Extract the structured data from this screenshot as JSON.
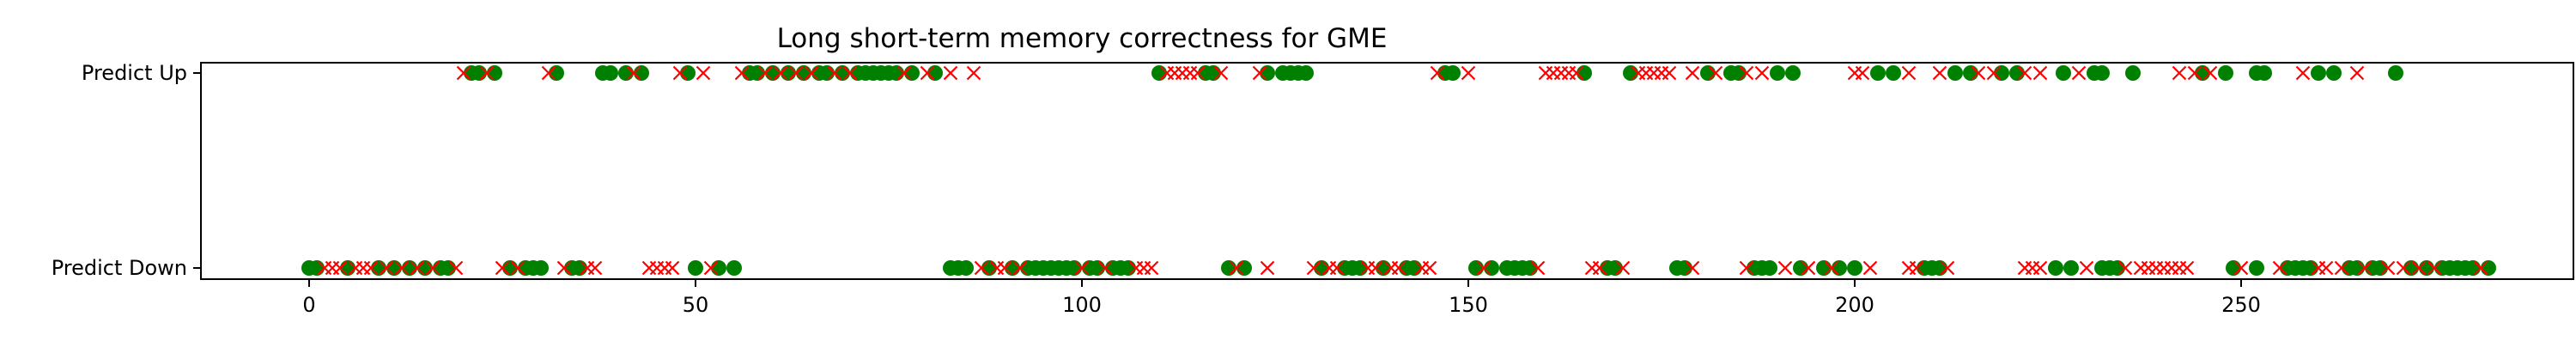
{
  "chart_data": {
    "type": "scatter",
    "title": "Long short-term memory correctness for GME",
    "xlabel": "",
    "ylabel": "",
    "xlim": [
      -14,
      293
    ],
    "x_ticks": [
      0,
      50,
      100,
      150,
      200,
      250
    ],
    "x_tick_labels": [
      "0",
      "50",
      "100",
      "150",
      "200",
      "250"
    ],
    "y_categories": [
      "Predict Down",
      "Predict Up"
    ],
    "legend": false,
    "grid": false,
    "marker_colors": {
      "correct": "#008000",
      "incorrect": "#ff0000"
    },
    "series": [
      {
        "marker": "circle",
        "color": "#008000",
        "points": [
          {
            "y": "Predict Up",
            "x": [
              21,
              22,
              24,
              32,
              38,
              39,
              41,
              43,
              49,
              57,
              58,
              60,
              62,
              64,
              66,
              67,
              69,
              71,
              72,
              73,
              74,
              75,
              76,
              78,
              81,
              110,
              116,
              117,
              124,
              126,
              127,
              128,
              129,
              147,
              148,
              165,
              171,
              181,
              184,
              185,
              190,
              192,
              203,
              205,
              213,
              215,
              219,
              221,
              227,
              231,
              232,
              236,
              245,
              248,
              252,
              253,
              260,
              262,
              270
            ]
          },
          {
            "y": "Predict Down",
            "x": [
              0,
              1,
              5,
              9,
              11,
              13,
              15,
              17,
              18,
              26,
              28,
              29,
              30,
              34,
              35,
              50,
              53,
              55,
              83,
              84,
              85,
              88,
              91,
              93,
              94,
              95,
              96,
              97,
              98,
              99,
              101,
              102,
              104,
              105,
              106,
              119,
              121,
              131,
              134,
              135,
              136,
              139,
              142,
              143,
              151,
              153,
              155,
              156,
              157,
              158,
              168,
              169,
              177,
              178,
              187,
              188,
              189,
              193,
              196,
              198,
              200,
              209,
              210,
              211,
              226,
              228,
              232,
              233,
              234,
              249,
              252,
              256,
              257,
              258,
              259,
              264,
              265,
              267,
              268,
              272,
              274,
              276,
              277,
              278,
              279,
              280,
              282
            ]
          }
        ]
      },
      {
        "marker": "x",
        "color": "#ff0000",
        "points": [
          {
            "y": "Predict Up",
            "x": [
              20,
              23,
              31,
              42,
              48,
              51,
              56,
              59,
              61,
              63,
              65,
              68,
              70,
              77,
              80,
              83,
              86,
              111,
              112,
              113,
              114,
              115,
              118,
              123,
              146,
              150,
              160,
              161,
              162,
              163,
              164,
              172,
              173,
              174,
              175,
              176,
              179,
              182,
              186,
              188,
              200,
              201,
              207,
              211,
              216,
              218,
              222,
              224,
              229,
              242,
              244,
              246,
              258,
              265
            ]
          },
          {
            "y": "Predict Down",
            "x": [
              2,
              3,
              4,
              6,
              7,
              8,
              10,
              12,
              14,
              16,
              19,
              25,
              27,
              33,
              36,
              37,
              44,
              45,
              46,
              47,
              52,
              87,
              89,
              90,
              92,
              100,
              103,
              107,
              108,
              109,
              120,
              124,
              130,
              132,
              133,
              137,
              138,
              140,
              141,
              144,
              145,
              152,
              159,
              166,
              167,
              170,
              179,
              186,
              191,
              194,
              197,
              202,
              207,
              208,
              212,
              222,
              223,
              224,
              230,
              235,
              237,
              238,
              239,
              240,
              241,
              242,
              243,
              250,
              255,
              260,
              261,
              263,
              266,
              269,
              271,
              273,
              275,
              281
            ]
          }
        ]
      }
    ]
  }
}
